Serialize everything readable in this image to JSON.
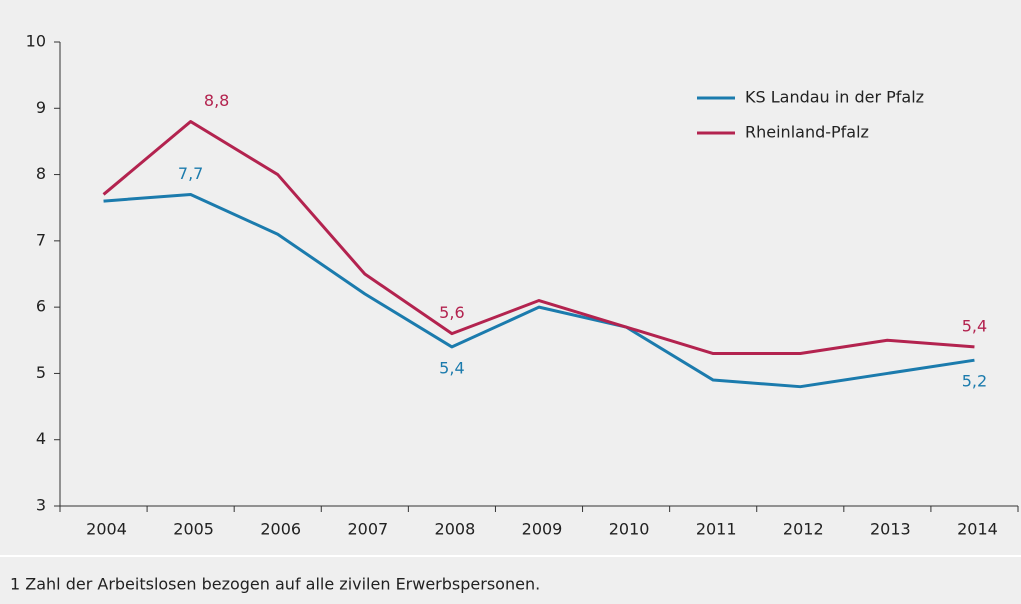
{
  "chart_data": {
    "type": "line",
    "categories": [
      "2004",
      "2005",
      "2006",
      "2007",
      "2008",
      "2009",
      "2010",
      "2011",
      "2012",
      "2013",
      "2014"
    ],
    "series": [
      {
        "name": "KS Landau in der Pfalz",
        "color": "#1b7bad",
        "values": [
          7.6,
          7.7,
          7.1,
          6.2,
          5.4,
          6.0,
          5.7,
          4.9,
          4.8,
          5.0,
          5.2
        ],
        "value_labels": [
          null,
          "7,7",
          null,
          null,
          "5,4",
          null,
          null,
          null,
          null,
          null,
          "5,2"
        ]
      },
      {
        "name": "Rheinland-Pfalz",
        "color": "#b3234f",
        "values": [
          7.7,
          8.8,
          8.0,
          6.5,
          5.6,
          6.1,
          5.7,
          5.3,
          5.3,
          5.5,
          5.4
        ],
        "value_labels": [
          null,
          "8,8",
          null,
          null,
          "5,6",
          null,
          null,
          null,
          null,
          null,
          "5,4"
        ]
      }
    ],
    "ylim": [
      3,
      10
    ],
    "yticks": [
      3,
      4,
      5,
      6,
      7,
      8,
      9,
      10
    ],
    "legend": "top-right",
    "footnote": "1 Zahl der Arbeitslosen bezogen auf alle zivilen Erwerbspersonen."
  }
}
